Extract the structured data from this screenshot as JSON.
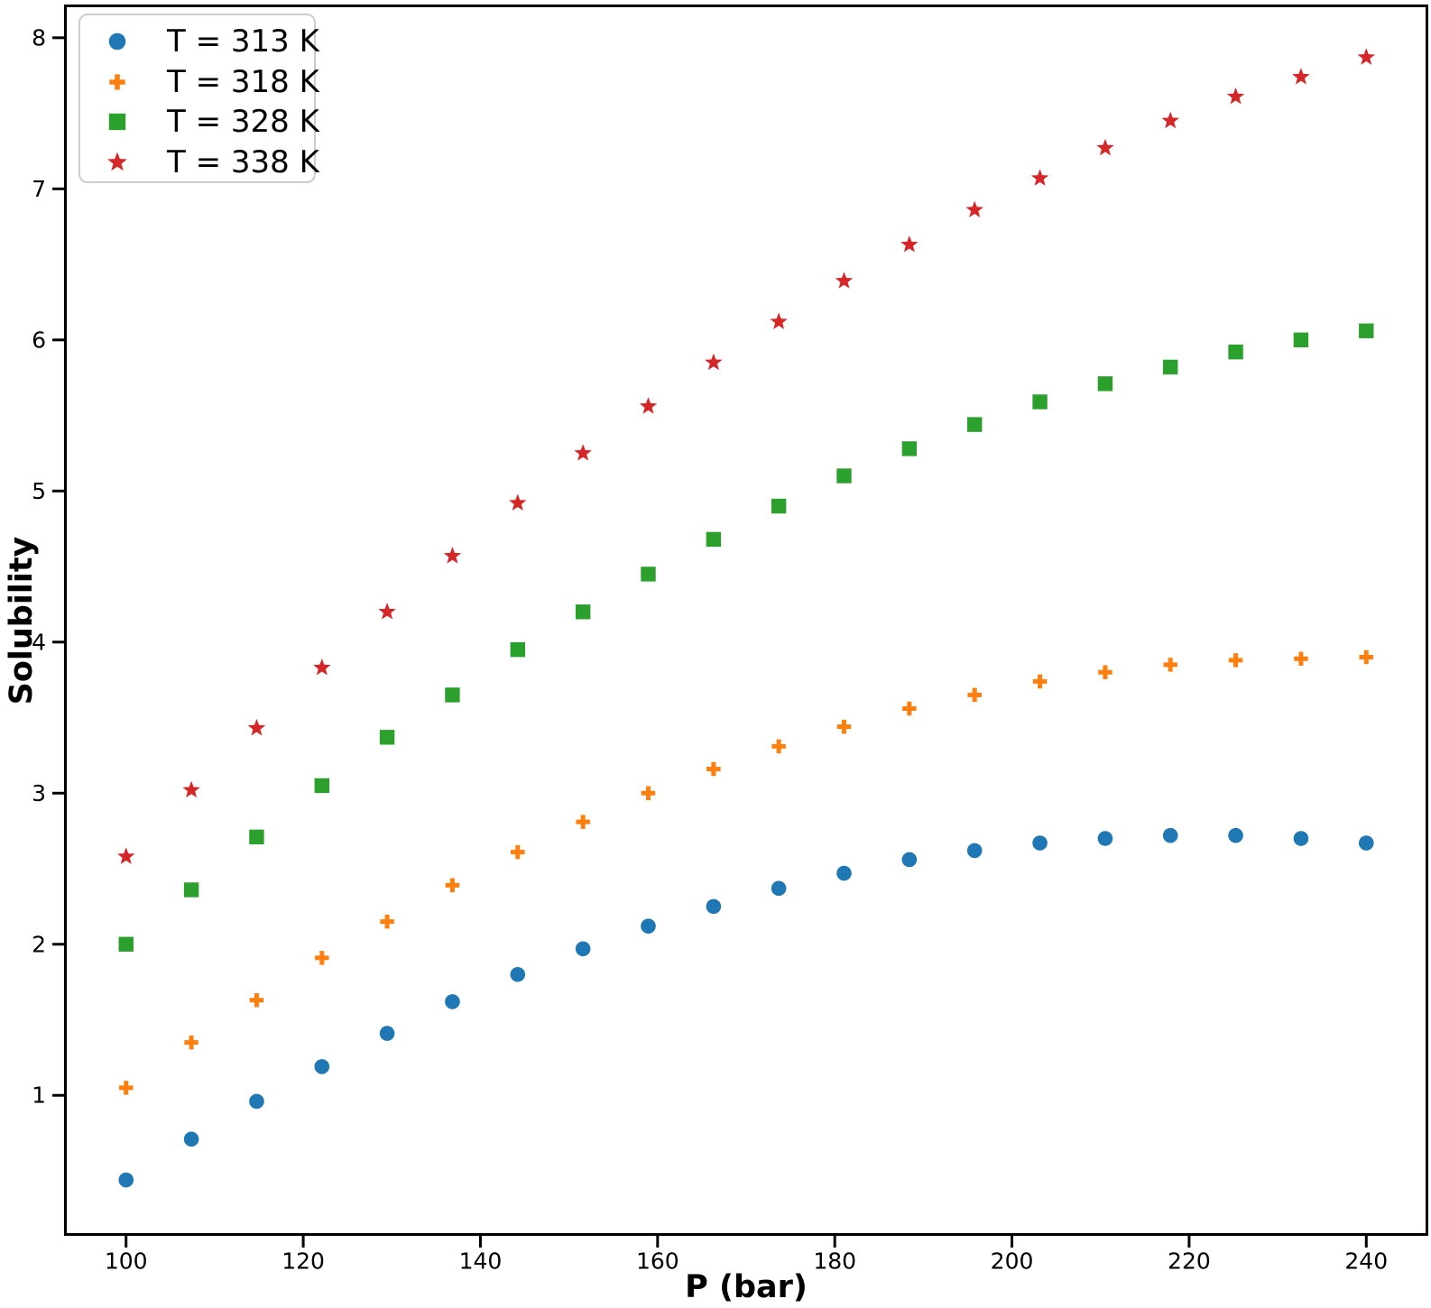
{
  "chart_data": {
    "type": "scatter",
    "title": "",
    "xlabel": "P (bar)",
    "ylabel": "Solubility",
    "xlim": [
      93,
      247
    ],
    "ylim": [
      0.07,
      8.22
    ],
    "x_ticks": [
      100,
      120,
      140,
      160,
      180,
      200,
      220,
      240
    ],
    "y_ticks": [
      1,
      2,
      3,
      4,
      5,
      6,
      7,
      8
    ],
    "grid": false,
    "legend_position": "upper left",
    "x": [
      100,
      107.37,
      114.74,
      122.11,
      129.47,
      136.84,
      144.21,
      151.58,
      158.95,
      166.32,
      173.68,
      181.05,
      188.42,
      195.79,
      203.16,
      210.53,
      217.89,
      225.26,
      232.63,
      240
    ],
    "series": [
      {
        "name": "T = 313 K",
        "marker": "circle",
        "color": "#1f77b4",
        "values": [
          0.44,
          0.71,
          0.96,
          1.19,
          1.41,
          1.62,
          1.8,
          1.97,
          2.12,
          2.25,
          2.37,
          2.47,
          2.56,
          2.62,
          2.67,
          2.7,
          2.72,
          2.72,
          2.7,
          2.67
        ]
      },
      {
        "name": "T = 318 K",
        "marker": "plus",
        "color": "#ff7f0e",
        "values": [
          1.05,
          1.35,
          1.63,
          1.91,
          2.15,
          2.39,
          2.61,
          2.81,
          3.0,
          3.16,
          3.31,
          3.44,
          3.56,
          3.65,
          3.74,
          3.8,
          3.85,
          3.88,
          3.89,
          3.9
        ]
      },
      {
        "name": "T = 328 K",
        "marker": "square",
        "color": "#2ca02c",
        "values": [
          2.0,
          2.36,
          2.71,
          3.05,
          3.37,
          3.65,
          3.95,
          4.2,
          4.45,
          4.68,
          4.9,
          5.1,
          5.28,
          5.44,
          5.59,
          5.71,
          5.82,
          5.92,
          6.0,
          6.06
        ]
      },
      {
        "name": "T = 338 K",
        "marker": "star",
        "color": "#d62728",
        "values": [
          2.58,
          3.02,
          3.43,
          3.83,
          4.2,
          4.57,
          4.92,
          5.25,
          5.56,
          5.85,
          6.12,
          6.39,
          6.63,
          6.86,
          7.07,
          7.27,
          7.45,
          7.61,
          7.74,
          7.87
        ]
      }
    ]
  }
}
